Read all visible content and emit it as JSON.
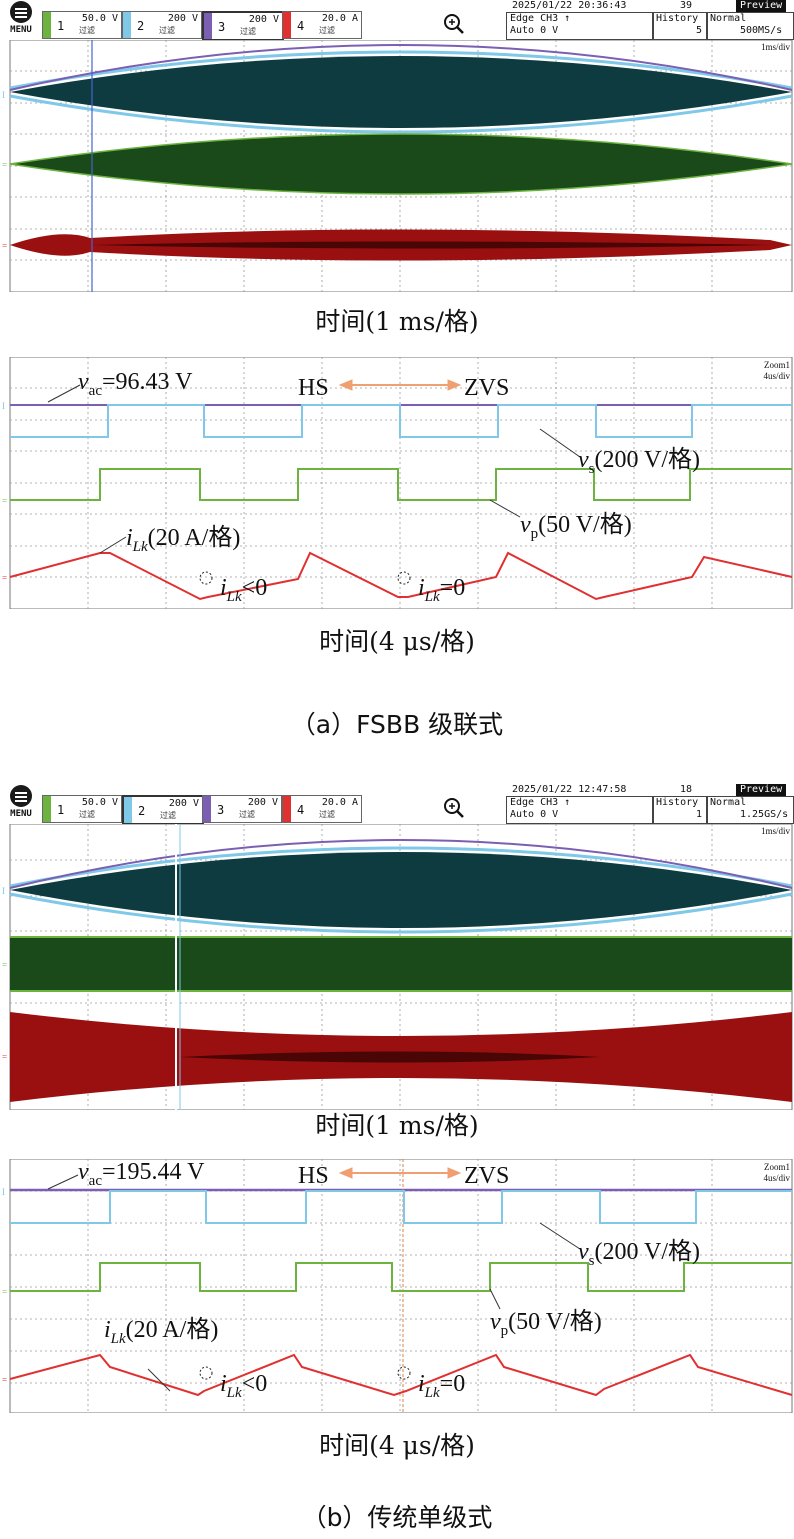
{
  "colors": {
    "ch1": "#6cb33f",
    "ch2": "#7fc8e8",
    "ch3": "#7a5fb3",
    "ch4": "#e03030",
    "teal_fill": "#0e3b3f",
    "green_fill": "#1a4a1a",
    "red_fill": "#9a1010",
    "grid": "#9a9a9a",
    "arrow": "#f0a070"
  },
  "panel_a": {
    "scope": {
      "menu_label": "MENU",
      "channels": [
        {
          "num": "1",
          "scale": "50.0 V",
          "sub": "过滤"
        },
        {
          "num": "2",
          "scale": "200 V",
          "sub": "过滤"
        },
        {
          "num": "3",
          "scale": "200 V",
          "sub": "过滤"
        },
        {
          "num": "4",
          "scale": "20.0 A",
          "sub": "过滤"
        }
      ],
      "datetime": "2025/01/22 20:36:43",
      "count": "39",
      "preview": "Preview",
      "trigger_line1": "Edge CH3 ↑",
      "trigger_line2": "Auto 0 V",
      "history_label": "History",
      "history_value": "5",
      "mode": "Normal",
      "sample_rate": "500MS/s",
      "timebase": "1ms/div"
    },
    "overview_caption": "时间(1 ms/格)",
    "zoom": {
      "zoom_label": "Zoom1",
      "zoom_timebase": "4us/div",
      "vac_prefix": "v",
      "vac_sub": "ac",
      "vac_value": "=96.43 V",
      "hs": "HS",
      "zvs": "ZVS",
      "vs_label": "v",
      "vs_sub": "s",
      "vs_scale": "(200 V/格)",
      "vp_label": "v",
      "vp_sub": "p",
      "vp_scale": "(50 V/格)",
      "ilk_label": "i",
      "ilk_sub": "Lk",
      "ilk_scale": "(20 A/格)",
      "ilk_lt0": "<0",
      "ilk_eq0": "=0"
    },
    "zoom_caption": "时间(4 μs/格)",
    "panel_caption": "（a）FSBB 级联式"
  },
  "panel_b": {
    "scope": {
      "menu_label": "MENU",
      "channels": [
        {
          "num": "1",
          "scale": "50.0 V",
          "sub": "过滤"
        },
        {
          "num": "2",
          "scale": "200 V",
          "sub": "过滤"
        },
        {
          "num": "3",
          "scale": "200 V",
          "sub": "过滤"
        },
        {
          "num": "4",
          "scale": "20.0 A",
          "sub": "过滤"
        }
      ],
      "datetime": "2025/01/22 12:47:58",
      "count": "18",
      "preview": "Preview",
      "trigger_line1": "Edge CH3 ↑",
      "trigger_line2": "Auto 0 V",
      "history_label": "History",
      "history_value": "1",
      "mode": "Normal",
      "sample_rate": "1.25GS/s",
      "timebase": "1ms/div"
    },
    "overview_caption": "时间(1 ms/格)",
    "zoom": {
      "zoom_label": "Zoom1",
      "zoom_timebase": "4us/div",
      "vac_prefix": "v",
      "vac_sub": "ac",
      "vac_value": "=195.44 V",
      "hs": "HS",
      "zvs": "ZVS",
      "vs_label": "v",
      "vs_sub": "s",
      "vs_scale": "(200 V/格)",
      "vp_label": "v",
      "vp_sub": "p",
      "vp_scale": "(50 V/格)",
      "ilk_label": "i",
      "ilk_sub": "Lk",
      "ilk_scale": "(20 A/格)",
      "ilk_lt0": "<0",
      "ilk_eq0": "=0"
    },
    "zoom_caption": "时间(4 μs/格)",
    "panel_caption": "（b）传统单级式"
  },
  "chart_data": [
    {
      "type": "line",
      "title": "",
      "xlabel": "时间(1 ms/格)",
      "ylabel": "",
      "grid": true,
      "series": [
        {
          "name": "ch1"
        },
        {
          "name": "ch2"
        },
        {
          "name": "ch3"
        },
        {
          "name": "ch4"
        }
      ]
    },
    {
      "type": "line",
      "title": "",
      "xlabel": "时间(4 μs/格)",
      "ylabel": "",
      "grid": true,
      "annotations": [
        "v_ac=96.43 V",
        "HS",
        "ZVS",
        "v_s(200 V/格)",
        "v_p(50 V/格)",
        "i_Lk(20 A/格)",
        "i_Lk<0",
        "i_Lk=0"
      ],
      "series": [
        {
          "name": "v_s"
        },
        {
          "name": "v_p"
        },
        {
          "name": "i_Lk"
        }
      ]
    },
    {
      "type": "line",
      "title": "",
      "xlabel": "时间(1 ms/格)",
      "ylabel": "",
      "grid": true,
      "series": [
        {
          "name": "ch1"
        },
        {
          "name": "ch2"
        },
        {
          "name": "ch3"
        },
        {
          "name": "ch4"
        }
      ]
    },
    {
      "type": "line",
      "title": "",
      "xlabel": "时间(4 μs/格)",
      "ylabel": "",
      "grid": true,
      "annotations": [
        "v_ac=195.44 V",
        "HS",
        "ZVS",
        "v_s(200 V/格)",
        "v_p(50 V/格)",
        "i_Lk(20 A/格)",
        "i_Lk<0",
        "i_Lk=0"
      ],
      "series": [
        {
          "name": "v_s"
        },
        {
          "name": "v_p"
        },
        {
          "name": "i_Lk"
        }
      ]
    }
  ]
}
